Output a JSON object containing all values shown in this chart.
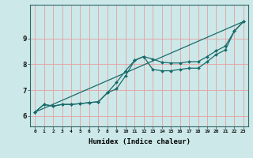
{
  "xlabel": "Humidex (Indice chaleur)",
  "bg_color": "#cce8e8",
  "grid_color": "#e8a0a0",
  "line_color": "#1a6b6b",
  "xlim": [
    -0.5,
    23.5
  ],
  "ylim": [
    5.6,
    10.3
  ],
  "yticks": [
    6,
    7,
    8,
    9
  ],
  "xticks": [
    0,
    1,
    2,
    3,
    4,
    5,
    6,
    7,
    8,
    9,
    10,
    11,
    12,
    13,
    14,
    15,
    16,
    17,
    18,
    19,
    20,
    21,
    22,
    23
  ],
  "line1_x": [
    0,
    1,
    2,
    3,
    4,
    5,
    6,
    7,
    8,
    9,
    10,
    11,
    12,
    13,
    14,
    15,
    16,
    17,
    18,
    19,
    20,
    21,
    22,
    23
  ],
  "line1_y": [
    6.15,
    6.45,
    6.38,
    6.45,
    6.45,
    6.48,
    6.52,
    6.55,
    6.9,
    7.05,
    7.55,
    8.15,
    8.3,
    7.8,
    7.75,
    7.75,
    7.8,
    7.85,
    7.85,
    8.1,
    8.38,
    8.55,
    9.28,
    9.65
  ],
  "line2_x": [
    0,
    1,
    2,
    3,
    4,
    5,
    6,
    7,
    8,
    9,
    10,
    11,
    12,
    13,
    14,
    15,
    16,
    17,
    18,
    19,
    20,
    21,
    22,
    23
  ],
  "line2_y": [
    6.15,
    6.45,
    6.38,
    6.45,
    6.45,
    6.48,
    6.52,
    6.55,
    6.9,
    7.3,
    7.75,
    8.15,
    8.3,
    8.2,
    8.08,
    8.05,
    8.05,
    8.1,
    8.1,
    8.3,
    8.52,
    8.7,
    9.28,
    9.65
  ],
  "line3_x": [
    0,
    23
  ],
  "line3_y": [
    6.15,
    9.65
  ]
}
